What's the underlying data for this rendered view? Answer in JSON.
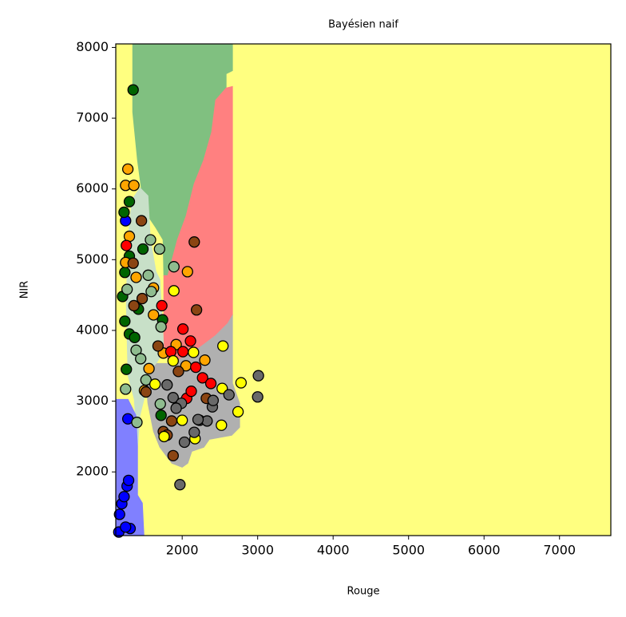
{
  "chart_data": {
    "type": "scatter",
    "title": "Bayésien naif",
    "xlabel": "Rouge",
    "ylabel": "NIR",
    "xlim": [
      1120,
      7680
    ],
    "ylim": [
      1100,
      8050
    ],
    "xticks": [
      2000,
      3000,
      4000,
      5000,
      6000,
      7000
    ],
    "yticks": [
      2000,
      3000,
      4000,
      5000,
      6000,
      7000,
      8000
    ],
    "background": "#ffff80",
    "regions": [
      {
        "color": "#80c080",
        "x": [
          1345,
          2666,
          2666,
          2582,
          2582,
          2444,
          2391,
          2286,
          2159,
          2053,
          1937,
          1810,
          1757,
          1747,
          1652,
          1546,
          1472,
          1408,
          1345
        ],
        "y": [
          8045,
          8045,
          7673,
          7628,
          7425,
          7255,
          6804,
          6409,
          6071,
          5620,
          5281,
          4774,
          4774,
          5281,
          5451,
          5620,
          5902,
          6409,
          7086
        ]
      },
      {
        "color": "#ff8080",
        "x": [
          2582,
          2666,
          2666,
          2603,
          2444,
          2233,
          2074,
          1842,
          1757,
          1757,
          1810,
          1937,
          2053,
          2159,
          2286,
          2391,
          2444
        ],
        "y": [
          7425,
          7447,
          4210,
          4097,
          3928,
          3759,
          3646,
          3533,
          3702,
          4774,
          4774,
          5281,
          5620,
          6071,
          6409,
          6804,
          7255
        ]
      },
      {
        "color": "#b0b0b0",
        "x": [
          1842,
          2074,
          2233,
          2444,
          2603,
          2666,
          2666,
          2761,
          2761,
          2656,
          2360,
          2286,
          2127,
          2074,
          2000,
          1863,
          1704,
          1620,
          1546,
          1514,
          1599
        ],
        "y": [
          3533,
          3646,
          3759,
          3928,
          4097,
          4210,
          3251,
          2969,
          2631,
          2518,
          2461,
          2349,
          2292,
          2123,
          2067,
          2123,
          2349,
          2574,
          2969,
          3364,
          3533
        ]
      },
      {
        "color": "#c8e0c8",
        "x": [
          1440,
          1546,
          1578,
          1652,
          1704,
          1757,
          1652,
          1514,
          1493,
          1440,
          1408,
          1366,
          1282,
          1260,
          1282,
          1335
        ],
        "y": [
          6015,
          5902,
          5281,
          4830,
          4717,
          3702,
          3533,
          3364,
          3025,
          2800,
          2349,
          3025,
          3364,
          4379,
          5281,
          5846
        ]
      },
      {
        "color": "#8080ff",
        "x": [
          1120,
          1282,
          1387,
          1408,
          1408,
          1472,
          1493,
          1120
        ],
        "y": [
          3025,
          3025,
          2800,
          2349,
          1672,
          1559,
          1100,
          1100
        ]
      }
    ],
    "series": [
      {
        "color": "#0000ff",
        "x": [
          1160,
          1170,
          1200,
          1230,
          1270,
          1290,
          1310,
          1250,
          1280,
          1250
        ],
        "y": [
          1150,
          1400,
          1550,
          1650,
          1800,
          1880,
          1200,
          1220,
          2750,
          5550
        ]
      },
      {
        "color": "#006400",
        "x": [
          1350,
          1230,
          1300,
          1240,
          1300,
          1210,
          1260,
          1240,
          1300,
          1370,
          1720,
          1740,
          1480,
          1420
        ],
        "y": [
          7400,
          5670,
          5820,
          4820,
          5050,
          4480,
          3450,
          4130,
          3950,
          3900,
          2800,
          4150,
          5150,
          4300
        ]
      },
      {
        "color": "#ffa500",
        "x": [
          1280,
          1250,
          1360,
          1300,
          1250,
          1390,
          1620,
          2070,
          1920,
          2050,
          1750,
          2300,
          1500,
          1560,
          1620
        ],
        "y": [
          6280,
          6050,
          6050,
          5330,
          4960,
          4750,
          4220,
          4830,
          3800,
          3500,
          3680,
          3580,
          3150,
          3460,
          4600
        ]
      },
      {
        "color": "#ff0000",
        "x": [
          1260,
          1730,
          2010,
          2110,
          2010,
          2180,
          2060,
          2120,
          2270,
          2380,
          1850
        ],
        "y": [
          5200,
          4350,
          4020,
          3850,
          3700,
          3480,
          3040,
          3140,
          3330,
          3250,
          3700
        ]
      },
      {
        "color": "#8b4513",
        "x": [
          2160,
          1460,
          2190,
          1360,
          1350,
          1750,
          1880,
          1860,
          1950,
          1680,
          1800,
          2320,
          1470,
          1520
        ],
        "y": [
          5250,
          5550,
          4290,
          4350,
          4950,
          2570,
          2230,
          2720,
          3420,
          3780,
          2520,
          3040,
          4450,
          3130
        ]
      },
      {
        "color": "#8fbc8f",
        "x": [
          1580,
          1700,
          1890,
          1270,
          1550,
          1720,
          1390,
          1450,
          1520,
          1400,
          1250,
          1710,
          1590
        ],
        "y": [
          5280,
          5150,
          4900,
          4580,
          4780,
          4050,
          3720,
          3600,
          3300,
          2700,
          3170,
          2960,
          4550
        ]
      },
      {
        "color": "#ffff00",
        "x": [
          2540,
          1890,
          2150,
          2780,
          2740,
          2520,
          2170,
          1760,
          2000,
          2530,
          1880,
          1640
        ],
        "y": [
          3780,
          4560,
          3690,
          3260,
          2850,
          2660,
          2470,
          2500,
          2730,
          3180,
          3570,
          3240
        ]
      },
      {
        "color": "#696969",
        "x": [
          1970,
          2030,
          2160,
          2230,
          2330,
          2400,
          2410,
          2620,
          3010,
          3000,
          1880,
          1990,
          1800,
          2210,
          1920
        ],
        "y": [
          1820,
          2420,
          2560,
          2730,
          2720,
          2920,
          3010,
          3090,
          3360,
          3060,
          3050,
          2970,
          3230,
          2740,
          2900
        ]
      }
    ]
  }
}
